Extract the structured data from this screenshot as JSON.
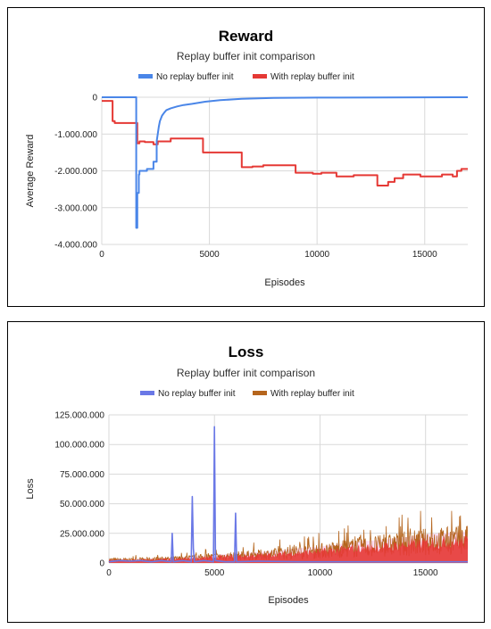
{
  "chart_data": [
    {
      "type": "line",
      "title": "Reward",
      "subtitle": "Replay buffer init comparison",
      "xlabel": "Episodes",
      "ylabel": "Average Reward",
      "xlim": [
        0,
        17000
      ],
      "ylim": [
        -4000000,
        0
      ],
      "xticks": [
        0,
        5000,
        10000,
        15000
      ],
      "xtick_labels": [
        "0",
        "5000",
        "10000",
        "15000"
      ],
      "yticks": [
        0,
        -1000000,
        -2000000,
        -3000000,
        -4000000
      ],
      "ytick_labels": [
        "0",
        "-1.000.000",
        "-2.000.000",
        "-3.000.000",
        "-4.000.000"
      ],
      "grid": true,
      "legend": "top",
      "series": [
        {
          "name": "No replay buffer init",
          "color": "#4a86e8",
          "x": [
            0,
            1600,
            1600,
            1650,
            1650,
            1720,
            1720,
            1750,
            1750,
            2100,
            2100,
            2400,
            2400,
            2550,
            2550,
            2650,
            2700,
            2800,
            2900,
            3000,
            3200,
            3500,
            3800,
            4200,
            4800,
            5500,
            6500,
            8000,
            10000,
            13000,
            17000
          ],
          "y": [
            0,
            0,
            -3550000,
            -3550000,
            -2600000,
            -2600000,
            -2100000,
            -2100000,
            -2000000,
            -2000000,
            -1950000,
            -1950000,
            -1750000,
            -1750000,
            -1200000,
            -800000,
            -650000,
            -500000,
            -420000,
            -350000,
            -300000,
            -250000,
            -210000,
            -180000,
            -120000,
            -80000,
            -40000,
            -20000,
            -10000,
            -5000,
            0
          ]
        },
        {
          "name": "With replay buffer init",
          "color": "#e53935",
          "x": [
            0,
            500,
            500,
            600,
            600,
            1650,
            1650,
            1750,
            1750,
            2000,
            2000,
            2400,
            2400,
            2600,
            2600,
            3200,
            3200,
            4700,
            4700,
            6500,
            6500,
            7000,
            7000,
            7500,
            7500,
            9000,
            9000,
            9800,
            9800,
            10200,
            10200,
            10900,
            10900,
            11700,
            11700,
            12800,
            12800,
            13300,
            13300,
            13600,
            13600,
            14000,
            14000,
            14800,
            14800,
            15800,
            15800,
            16300,
            16300,
            16500,
            16500,
            16700,
            16700,
            17000
          ],
          "y": [
            -100000,
            -100000,
            -650000,
            -650000,
            -700000,
            -700000,
            -1250000,
            -1250000,
            -1200000,
            -1200000,
            -1220000,
            -1220000,
            -1280000,
            -1280000,
            -1200000,
            -1200000,
            -1120000,
            -1120000,
            -1500000,
            -1500000,
            -1900000,
            -1900000,
            -1880000,
            -1880000,
            -1850000,
            -1850000,
            -2050000,
            -2050000,
            -2080000,
            -2080000,
            -2050000,
            -2050000,
            -2150000,
            -2150000,
            -2120000,
            -2120000,
            -2400000,
            -2400000,
            -2300000,
            -2300000,
            -2200000,
            -2200000,
            -2100000,
            -2100000,
            -2150000,
            -2150000,
            -2100000,
            -2100000,
            -2150000,
            -2150000,
            -2000000,
            -2000000,
            -1950000,
            -1950000
          ]
        }
      ]
    },
    {
      "type": "line",
      "title": "Loss",
      "subtitle": "Replay buffer init comparison",
      "xlabel": "Episodes",
      "ylabel": "Loss",
      "xlim": [
        0,
        17000
      ],
      "ylim": [
        0,
        125000000
      ],
      "xticks": [
        0,
        5000,
        10000,
        15000
      ],
      "xtick_labels": [
        "0",
        "5000",
        "10000",
        "15000"
      ],
      "yticks": [
        0,
        25000000,
        50000000,
        75000000,
        100000000,
        125000000
      ],
      "ytick_labels": [
        "0",
        "25.000.000",
        "50.000.000",
        "75.000.000",
        "100.000.000",
        "125.000.000"
      ],
      "grid": true,
      "legend": "top",
      "series": [
        {
          "name": "No replay buffer init",
          "color": "#6a78e6",
          "x": [
            0,
            500,
            1000,
            1500,
            2000,
            2500,
            2950,
            3000,
            3050,
            3500,
            3900,
            3950,
            4000,
            4050,
            4500,
            4950,
            5000,
            5050,
            5500,
            5950,
            6000,
            6050,
            7000,
            9000,
            11000,
            13000,
            15000,
            17000
          ],
          "y": [
            1000000,
            2000000,
            1500000,
            2000000,
            1000000,
            2000000,
            1000000,
            25000000,
            1000000,
            2000000,
            1000000,
            56000000,
            12000000,
            1000000,
            2000000,
            1000000,
            115000000,
            2000000,
            1000000,
            1000000,
            42000000,
            1000000,
            1500000,
            1000000,
            1000000,
            1000000,
            1000000,
            1000000
          ]
        },
        {
          "name": "With replay buffer init",
          "color": "#e53935",
          "x": [
            0,
            1000,
            2000,
            3000,
            4000,
            5000,
            6000,
            7000,
            8000,
            9000,
            10000,
            11000,
            12000,
            13000,
            14000,
            15000,
            16000,
            17000
          ],
          "y": [
            3000000,
            3000000,
            3500000,
            4000000,
            5000000,
            6000000,
            7000000,
            8000000,
            9000000,
            11000000,
            12000000,
            14000000,
            16000000,
            17000000,
            19000000,
            21000000,
            22000000,
            23000000
          ]
        }
      ]
    }
  ]
}
